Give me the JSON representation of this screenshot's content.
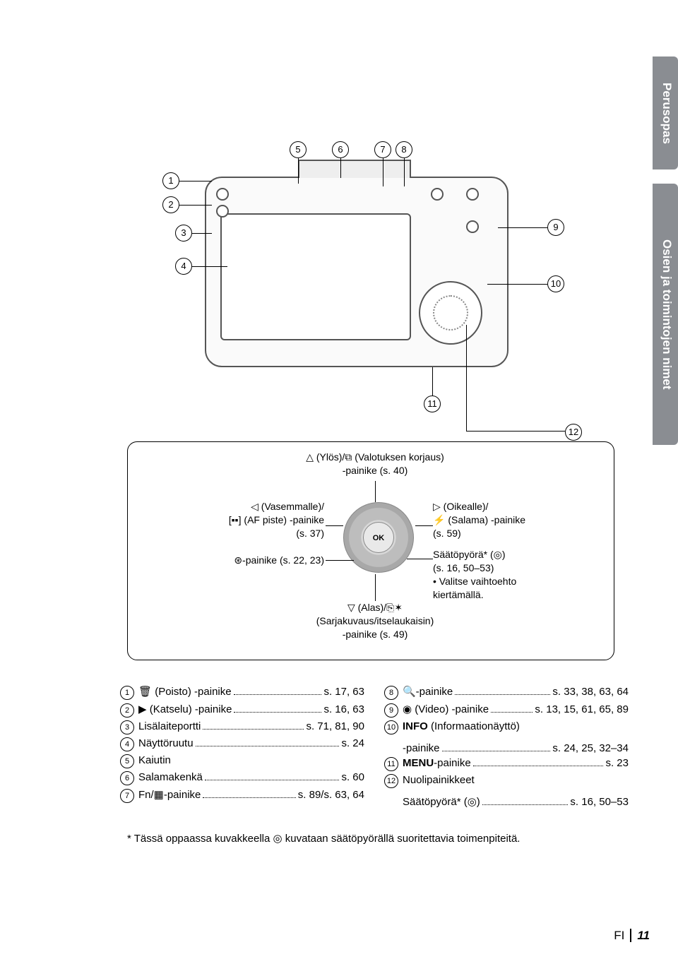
{
  "sideTabs": {
    "tab1": "Perusopas",
    "tab2": "Osien ja toimintojen nimet"
  },
  "diagramLabels": [
    "1",
    "2",
    "3",
    "4",
    "5",
    "6",
    "7",
    "8",
    "9",
    "10",
    "11",
    "12"
  ],
  "pad": {
    "ok": "OK",
    "top": "△ (Ylös)/⧉ (Valotuksen korjaus)\n-painike (s. 40)",
    "left": "◁ (Vasemmalle)/\n[▪▪] (AF piste) -painike\n(s. 37)",
    "right": "▷ (Oikealle)/\n⚡ (Salama) -painike\n(s. 59)",
    "okline": "⊛-painike (s. 22, 23)",
    "dialline": "Säätöpyörä* (◎)\n(s. 16, 50–53)\n• Valitse vaihtoehto\n  kiertämällä.",
    "bottom": "▽ (Alas)/⎘✶\n(Sarjakuvaus/itselaukaisin)\n-painike (s. 49)"
  },
  "leftCol": [
    {
      "n": "1",
      "label": "🗑 (Poisto) -painike",
      "pg": "s. 17, 63"
    },
    {
      "n": "2",
      "label": "▶ (Katselu) -painike",
      "pg": "s. 16, 63"
    },
    {
      "n": "3",
      "label": "Lisälaiteportti",
      "pg": "s. 71, 81, 90"
    },
    {
      "n": "4",
      "label": "Näyttöruutu",
      "pg": "s. 24"
    },
    {
      "n": "5",
      "label": "Kaiutin",
      "pg": "",
      "noleader": true
    },
    {
      "n": "6",
      "label": "Salamakenkä",
      "pg": "s. 60"
    },
    {
      "n": "7",
      "label": "Fn/▦-painike",
      "pg": "s. 89/s. 63, 64"
    }
  ],
  "rightCol": [
    {
      "n": "8",
      "label": "🔍-painike",
      "pg": "s. 33, 38, 63, 64"
    },
    {
      "n": "9",
      "label": "◉ (Video) -painike",
      "pg": "s. 13, 15, 61, 65, 89"
    },
    {
      "n": "10",
      "label": "INFO (Informaationäyttö)\n-painike",
      "pg": "s. 24, 25, 32–34",
      "bold": "INFO"
    },
    {
      "n": "11",
      "label": "MENU-painike",
      "pg": "s. 23",
      "bold": "MENU"
    },
    {
      "n": "12",
      "label": "Nuolipainikkeet\nSäätöpyörä* (◎)",
      "pg": "s. 16, 50–53"
    }
  ],
  "footnote": "* Tässä oppaassa kuvakkeella ◎ kuvataan säätöpyörällä suoritettavia toimenpiteitä.",
  "footer": {
    "lang": "FI",
    "page": "11"
  },
  "colors": {
    "tab": "#8a8d92",
    "text": "#000000",
    "line": "#555555"
  }
}
